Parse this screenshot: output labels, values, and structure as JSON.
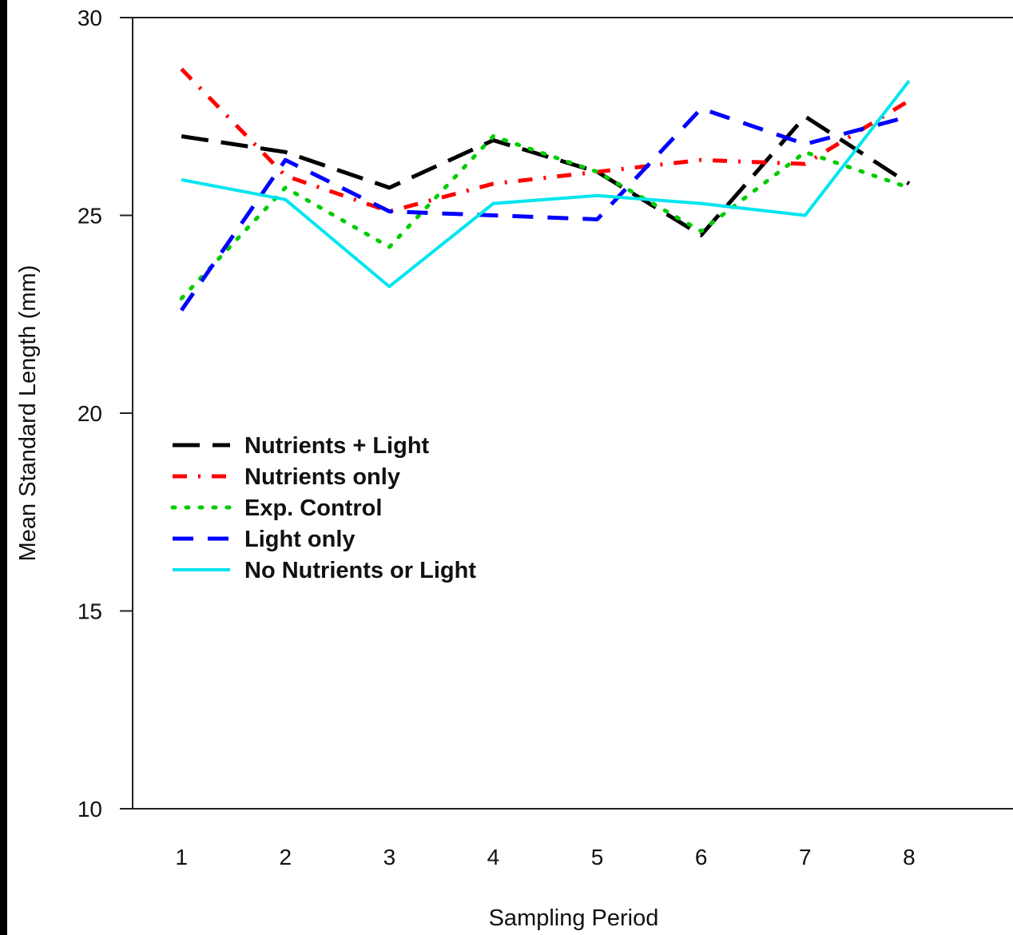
{
  "chart_data": {
    "type": "line",
    "xlabel": "Sampling Period",
    "ylabel": "Mean Standard Length (mm)",
    "x": [
      1,
      2,
      3,
      4,
      5,
      6,
      7,
      8
    ],
    "xticks": [
      "1",
      "2",
      "3",
      "4",
      "5",
      "6",
      "7",
      "8"
    ],
    "yticks": [
      "10",
      "15",
      "20",
      "25",
      "30"
    ],
    "ylim": [
      10,
      30
    ],
    "xlim": [
      0.53,
      9.0
    ],
    "grid": false,
    "legend_position": "center-left",
    "series": [
      {
        "name": "Nutrients + Light",
        "color": "#000000",
        "style": "long-dash",
        "values": [
          27.0,
          26.6,
          25.7,
          26.9,
          26.1,
          24.5,
          27.5,
          25.8
        ]
      },
      {
        "name": "Nutrients only",
        "color": "#ff0000",
        "style": "dash-dot",
        "values": [
          28.7,
          26.0,
          25.1,
          25.8,
          26.1,
          26.4,
          26.3,
          27.9
        ]
      },
      {
        "name": "Exp. Control",
        "color": "#00cc00",
        "style": "dotted",
        "values": [
          22.9,
          25.7,
          24.2,
          27.0,
          26.1,
          24.6,
          26.6,
          25.7
        ]
      },
      {
        "name": "Light only",
        "color": "#0000ff",
        "style": "dash",
        "values": [
          22.6,
          26.4,
          25.1,
          25.0,
          24.9,
          27.7,
          26.8,
          27.5
        ]
      },
      {
        "name": "No Nutrients or Light",
        "color": "#00e5ee",
        "style": "solid",
        "values": [
          25.9,
          25.4,
          23.2,
          25.3,
          25.5,
          25.3,
          25.0,
          28.4
        ]
      }
    ]
  }
}
